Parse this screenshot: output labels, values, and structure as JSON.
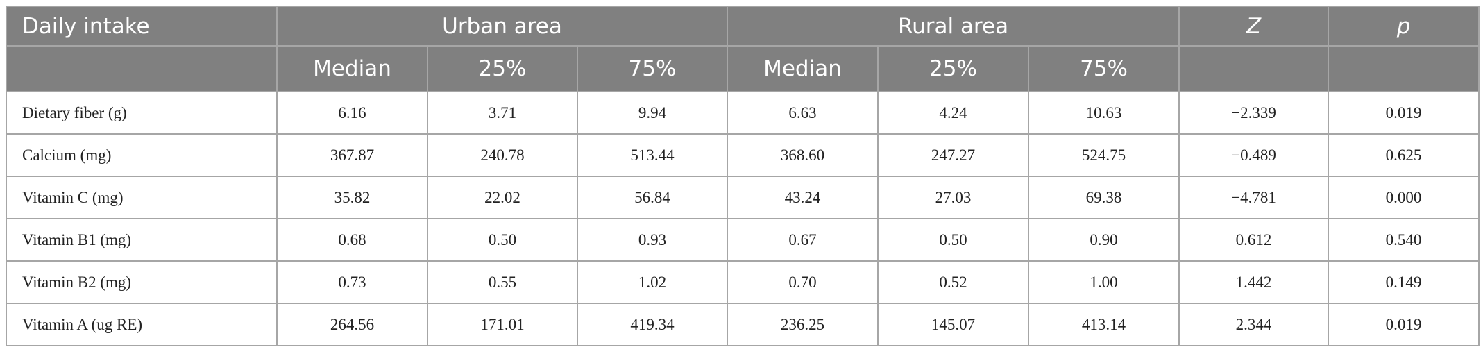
{
  "table": {
    "header": {
      "row1": [
        "Daily intake",
        "Urban area",
        "Rural area",
        "Z",
        "p"
      ],
      "row2": [
        "Median",
        "25%",
        "75%",
        "Median",
        "25%",
        "75%"
      ]
    },
    "rows": [
      [
        "Dietary fiber (g)",
        "6.16",
        "3.71",
        "9.94",
        "6.63",
        "4.24",
        "10.63",
        "−2.339",
        "0.019"
      ],
      [
        "Calcium (mg)",
        "367.87",
        "240.78",
        "513.44",
        "368.60",
        "247.27",
        "524.75",
        "−0.489",
        "0.625"
      ],
      [
        "Vitamin C (mg)",
        "35.82",
        "22.02",
        "56.84",
        "43.24",
        "27.03",
        "69.38",
        "−4.781",
        "0.000"
      ],
      [
        "Vitamin B1 (mg)",
        "0.68",
        "0.50",
        "0.93",
        "0.67",
        "0.50",
        "0.90",
        "0.612",
        "0.540"
      ],
      [
        "Vitamin B2 (mg)",
        "0.73",
        "0.55",
        "1.02",
        "0.70",
        "0.52",
        "1.00",
        "1.442",
        "0.149"
      ],
      [
        "Vitamin A (ug RE)",
        "264.56",
        "171.01",
        "419.34",
        "236.25",
        "145.07",
        "413.14",
        "2.344",
        "0.019"
      ]
    ]
  }
}
